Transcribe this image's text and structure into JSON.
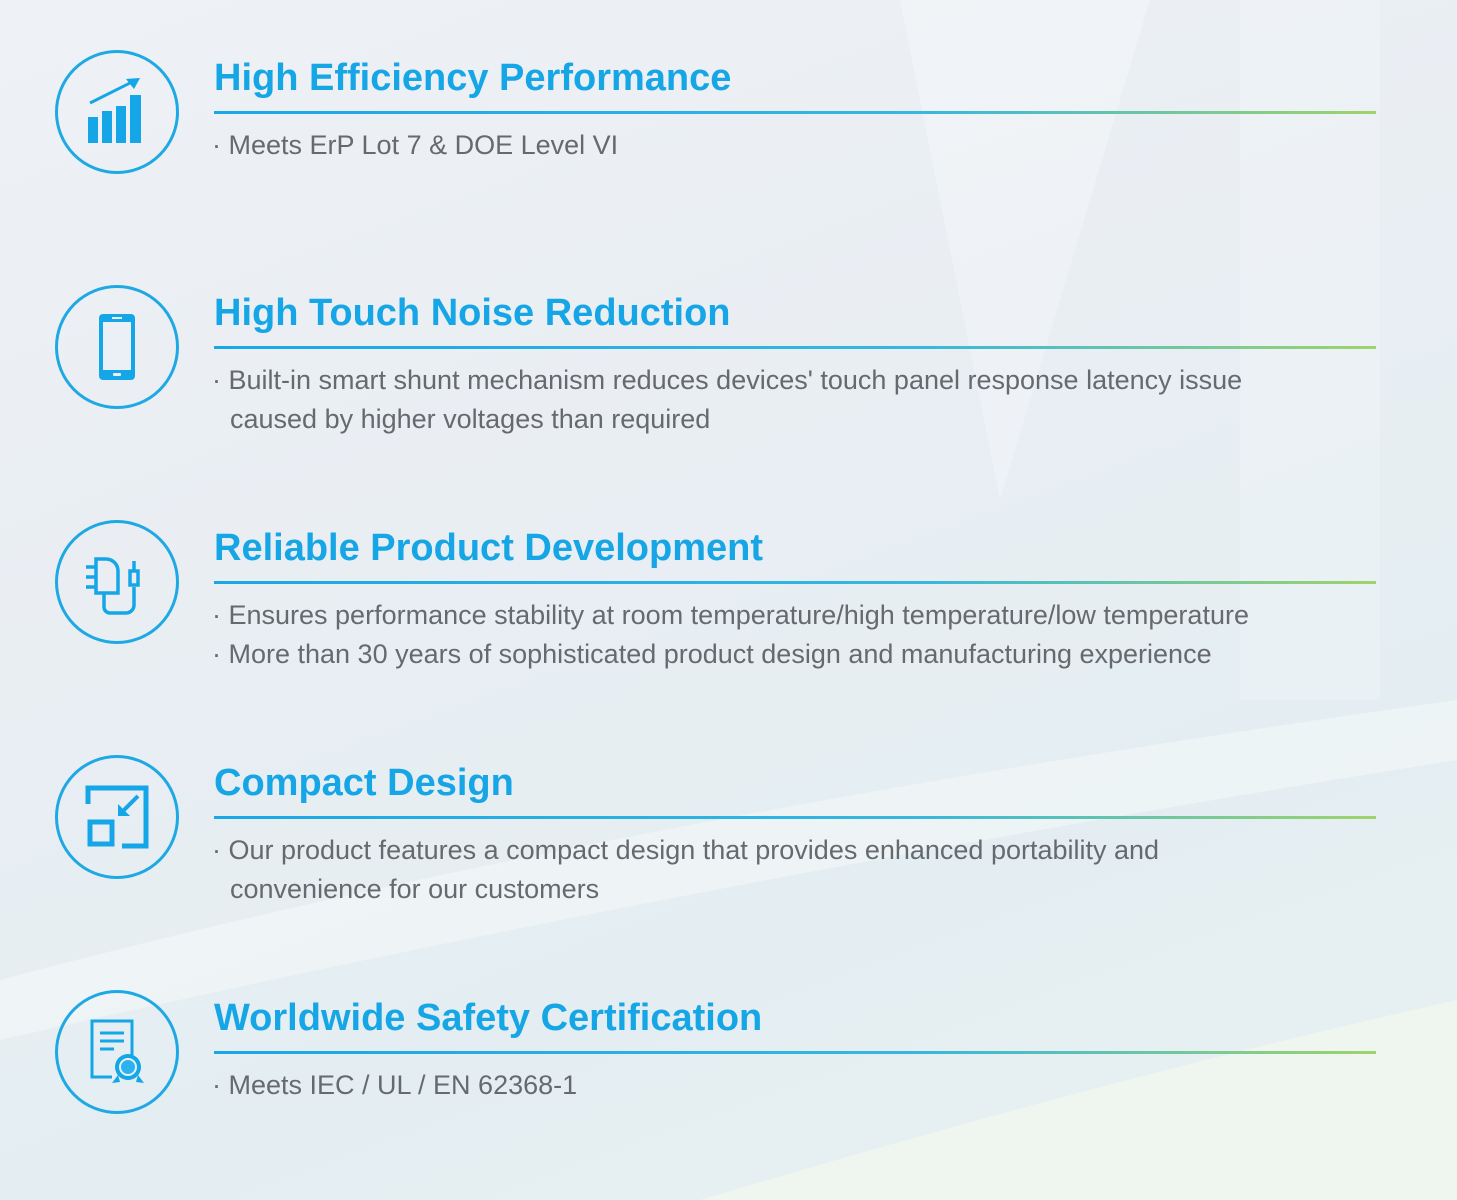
{
  "accent_color": "#16a6e6",
  "rule_gradient": [
    "#1aa7e6",
    "#9fd46a"
  ],
  "features": [
    {
      "icon": "bar-chart-growth-icon",
      "title": "High Efficiency Performance",
      "lines": [
        "· Meets ErP Lot 7 & DOE Level VI"
      ]
    },
    {
      "icon": "smartphone-icon",
      "title": "High Touch Noise Reduction",
      "lines": [
        "· Built-in smart shunt mechanism reduces devices' touch panel response latency issue",
        "  caused by higher voltages than required"
      ]
    },
    {
      "icon": "power-adapter-icon",
      "title": "Reliable Product Development",
      "lines": [
        "· Ensures performance stability at room temperature/high temperature/low temperature",
        "· More than 30 years of sophisticated product  design and manufacturing experience"
      ]
    },
    {
      "icon": "compact-resize-icon",
      "title": "Compact Design",
      "lines": [
        "· Our product features a compact design that provides enhanced portability and",
        "  convenience for our customers"
      ]
    },
    {
      "icon": "certificate-icon",
      "title": "Worldwide Safety Certification",
      "lines": [
        "· Meets IEC / UL / EN 62368-1"
      ]
    }
  ]
}
